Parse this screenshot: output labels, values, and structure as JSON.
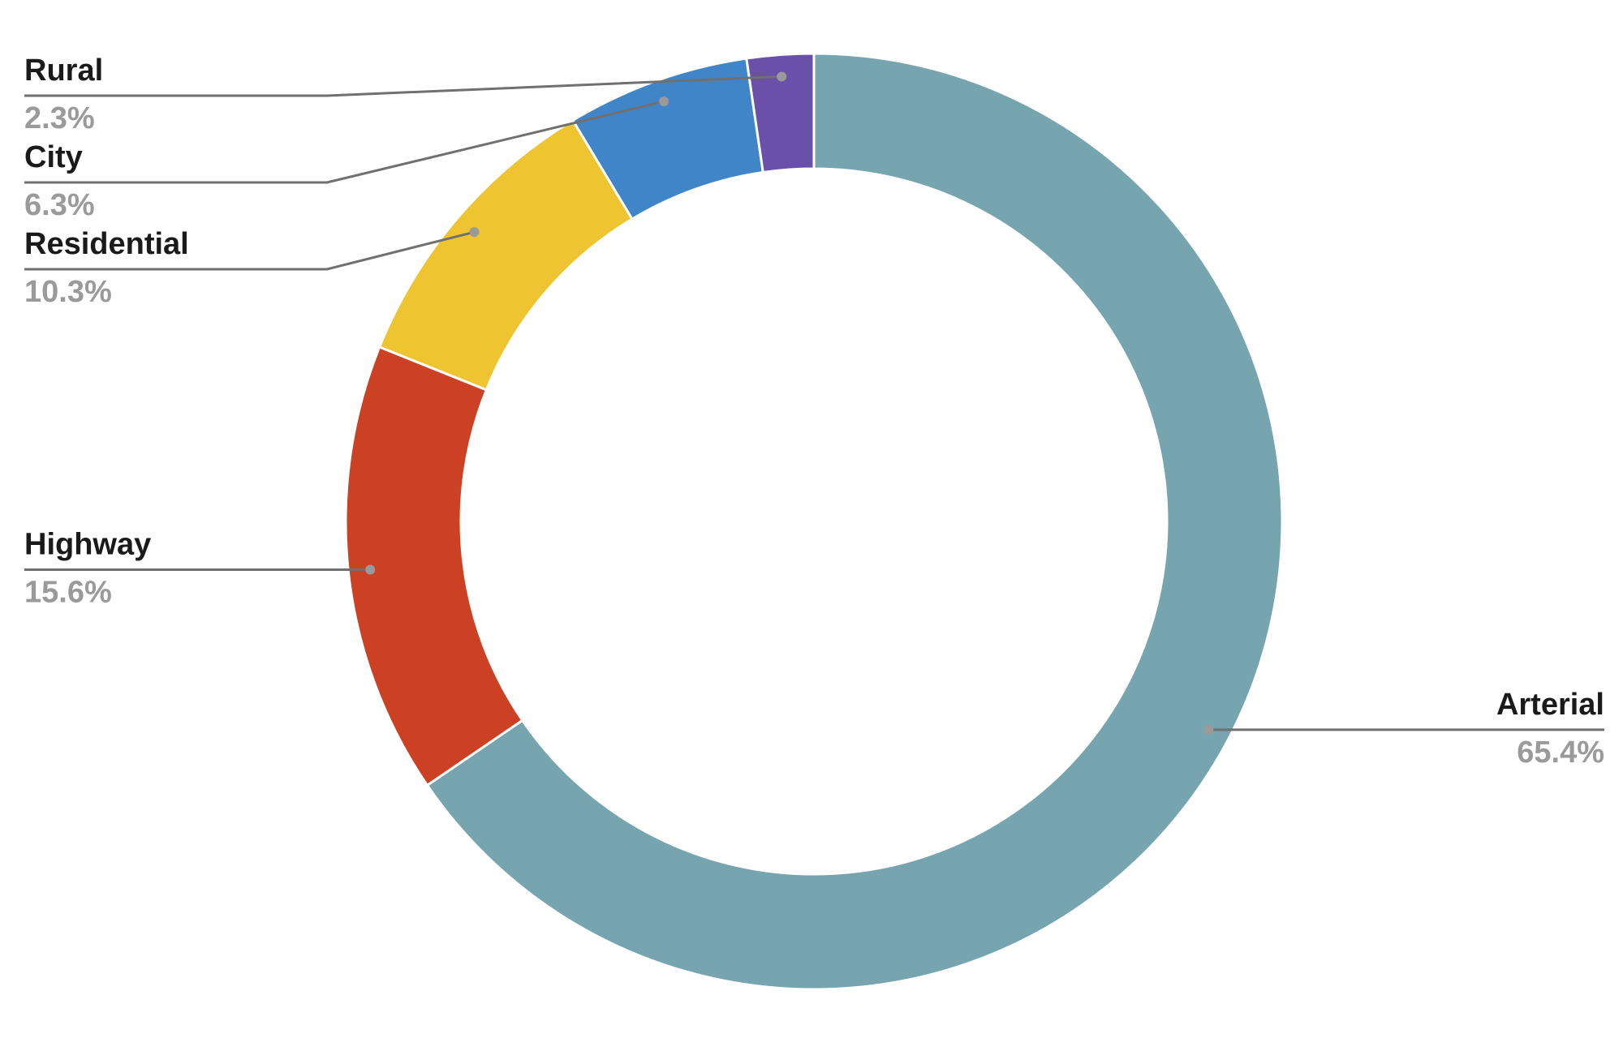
{
  "chart_data": {
    "type": "donut",
    "categories": [
      "Arterial",
      "Highway",
      "Residential",
      "City",
      "Rural"
    ],
    "series": [
      {
        "values": [
          65.4,
          15.6,
          10.3,
          6.3,
          2.3
        ],
        "value_labels": [
          "65.4%",
          "15.6%",
          "10.3%",
          "6.3%",
          "2.3%"
        ]
      }
    ],
    "colors": [
      "#77a5af",
      "#cc4024",
      "#efc431",
      "#3f85c8",
      "#6a50a8"
    ]
  }
}
